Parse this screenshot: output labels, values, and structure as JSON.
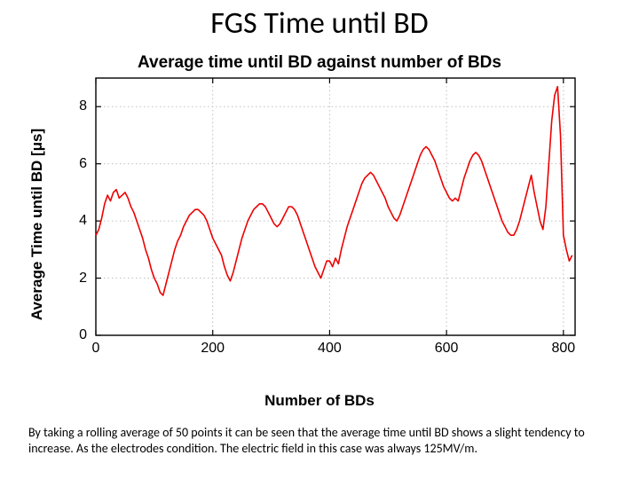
{
  "slide": {
    "title": "FGS Time until BD",
    "caption": "By taking a rolling average of 50 points it can be seen that  the average time until BD shows a slight tendency to increase.  As the electrodes condition.  The electric field in this case was always 125MV/m."
  },
  "chart": {
    "type": "line",
    "title": "Average time until BD against number of BDs",
    "xlabel": "Number of BDs",
    "ylabel": "Average Time until BD [μs]",
    "xlim": [
      0,
      820
    ],
    "ylim": [
      0,
      9
    ],
    "xticks": [
      0,
      200,
      400,
      600,
      800
    ],
    "yticks": [
      0,
      2,
      4,
      6,
      8
    ],
    "background_color": "#ffffff",
    "axis_color": "#000000",
    "grid_color": "#c0c0c0",
    "grid_style": "dotted",
    "line_color": "#ee0000",
    "line_width": 1.6,
    "title_fontsize": 19,
    "label_fontsize": 17,
    "tick_fontsize": 16,
    "series": {
      "x_all": [
        0,
        5,
        10,
        15,
        20,
        25,
        30,
        35,
        40,
        45,
        50,
        55,
        60,
        65,
        70,
        75,
        80,
        85,
        90,
        95,
        100,
        105,
        110,
        115,
        120,
        125,
        130,
        135,
        140,
        145,
        150,
        155,
        160,
        165,
        170,
        175,
        180,
        185,
        190,
        195,
        200,
        205,
        210,
        215,
        220,
        225,
        230,
        235,
        240,
        245,
        250,
        255,
        260,
        265,
        270,
        275,
        280,
        285,
        290,
        295,
        300,
        305,
        310,
        315,
        320,
        325,
        330,
        335,
        340,
        345,
        350,
        355,
        360,
        365,
        370,
        375,
        380,
        385,
        390,
        395,
        400,
        405,
        410,
        415,
        420,
        425,
        430,
        435,
        440,
        445,
        450,
        455,
        460,
        465,
        470,
        475,
        480,
        485,
        490,
        495,
        500,
        505,
        510,
        515,
        520,
        525,
        530,
        535,
        540,
        545,
        550,
        555,
        560,
        565,
        570,
        575,
        580,
        585,
        590,
        595,
        600,
        605,
        610,
        615,
        620,
        625,
        630,
        635,
        640,
        645,
        650,
        655,
        660,
        665,
        670,
        675,
        680,
        685,
        690,
        695,
        700,
        705,
        710,
        715,
        720,
        725,
        730,
        735,
        740,
        745,
        750,
        755,
        760,
        765,
        770,
        775,
        780,
        785,
        790,
        795,
        800,
        805,
        810,
        815
      ],
      "y_all": [
        3.5,
        3.7,
        4.1,
        4.6,
        4.9,
        4.7,
        5.0,
        5.1,
        4.8,
        4.9,
        5.0,
        4.8,
        4.5,
        4.3,
        4.0,
        3.7,
        3.4,
        3.0,
        2.7,
        2.3,
        2.0,
        1.8,
        1.5,
        1.4,
        1.8,
        2.2,
        2.6,
        3.0,
        3.3,
        3.5,
        3.8,
        4.0,
        4.2,
        4.3,
        4.4,
        4.4,
        4.3,
        4.2,
        4.0,
        3.7,
        3.4,
        3.2,
        3.0,
        2.8,
        2.4,
        2.1,
        1.9,
        2.2,
        2.6,
        3.0,
        3.4,
        3.7,
        4.0,
        4.2,
        4.4,
        4.5,
        4.6,
        4.6,
        4.5,
        4.3,
        4.1,
        3.9,
        3.8,
        3.9,
        4.1,
        4.3,
        4.5,
        4.5,
        4.4,
        4.2,
        3.9,
        3.6,
        3.3,
        3.0,
        2.7,
        2.4,
        2.2,
        2.0,
        2.3,
        2.6,
        2.6,
        2.4,
        2.7,
        2.5,
        3.0,
        3.4,
        3.8,
        4.1,
        4.4,
        4.7,
        5.0,
        5.3,
        5.5,
        5.6,
        5.7,
        5.6,
        5.4,
        5.2,
        5.0,
        4.8,
        4.5,
        4.3,
        4.1,
        4.0,
        4.2,
        4.5,
        4.8,
        5.1,
        5.4,
        5.7,
        6.0,
        6.3,
        6.5,
        6.6,
        6.5,
        6.3,
        6.1,
        5.8,
        5.5,
        5.2,
        5.0,
        4.8,
        4.7,
        4.8,
        4.7,
        5.1,
        5.5,
        5.8,
        6.1,
        6.3,
        6.4,
        6.3,
        6.1,
        5.8,
        5.5,
        5.2,
        4.9,
        4.6,
        4.3,
        4.0,
        3.8,
        3.6,
        3.5,
        3.5,
        3.7,
        4.0,
        4.4,
        4.8,
        5.2,
        5.6,
        5.0,
        4.5,
        4.0,
        3.7,
        4.5,
        6.0,
        7.5,
        8.4,
        8.7,
        7.0,
        3.5,
        3.0,
        2.6,
        2.8
      ]
    }
  }
}
